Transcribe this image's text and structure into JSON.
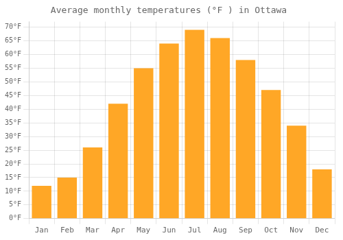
{
  "chart_data": {
    "type": "bar",
    "title": "Average monthly temperatures (°F ) in Ottawa",
    "categories": [
      "Jan",
      "Feb",
      "Mar",
      "Apr",
      "May",
      "Jun",
      "Jul",
      "Aug",
      "Sep",
      "Oct",
      "Nov",
      "Dec"
    ],
    "values": [
      12,
      15,
      26,
      42,
      55,
      64,
      69,
      66,
      58,
      47,
      34,
      18
    ],
    "color": "#FFA726",
    "ylim": [
      0,
      72
    ],
    "yticks": [
      {
        "value": 0,
        "label": "0°F"
      },
      {
        "value": 5,
        "label": "5°F"
      },
      {
        "value": 10,
        "label": "10°F"
      },
      {
        "value": 15,
        "label": "15°F"
      },
      {
        "value": 20,
        "label": "20°F"
      },
      {
        "value": 25,
        "label": "25°F"
      },
      {
        "value": 30,
        "label": "30°F"
      },
      {
        "value": 35,
        "label": "35°F"
      },
      {
        "value": 40,
        "label": "40°F"
      },
      {
        "value": 45,
        "label": "45°F"
      },
      {
        "value": 50,
        "label": "50°F"
      },
      {
        "value": 55,
        "label": "55°F"
      },
      {
        "value": 60,
        "label": "60°F"
      },
      {
        "value": 65,
        "label": "65°F"
      },
      {
        "value": 70,
        "label": "70°F"
      }
    ],
    "grid": true
  }
}
